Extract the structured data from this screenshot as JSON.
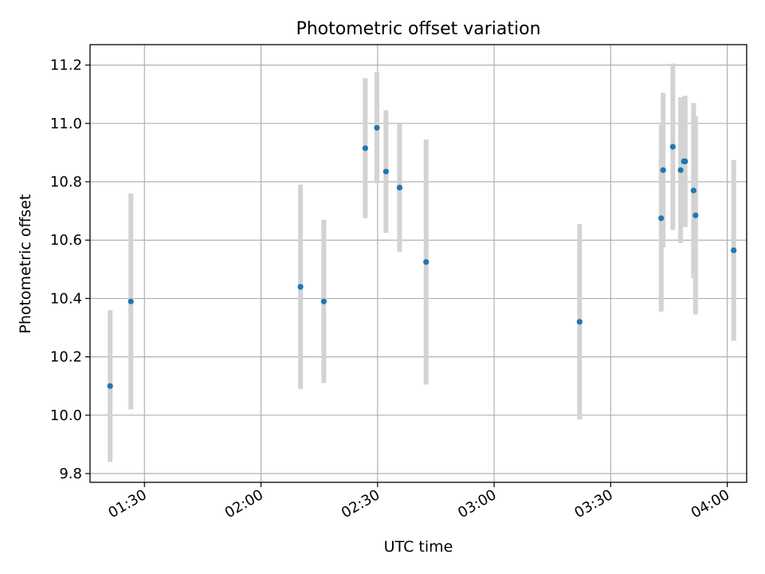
{
  "chart_data": {
    "type": "scatter",
    "title": "Photometric offset variation",
    "xlabel": "UTC time",
    "ylabel": "Photometric offset",
    "x_axis": "time",
    "xlim": [
      "01:16",
      "04:05"
    ],
    "ylim": [
      9.77,
      11.27
    ],
    "x_ticks": [
      "01:30",
      "02:00",
      "02:30",
      "03:00",
      "03:30",
      "04:00"
    ],
    "y_ticks": [
      "9.8",
      "10.0",
      "10.2",
      "10.4",
      "10.6",
      "10.8",
      "11.0",
      "11.2"
    ],
    "grid": true,
    "marker_color": "#1f77b4",
    "errorbar_color": "#d3d3d3",
    "points": [
      {
        "t": "01:21:10",
        "y": 10.1,
        "err": 0.26
      },
      {
        "t": "01:26:30",
        "y": 10.39,
        "err": 0.37
      },
      {
        "t": "02:10:10",
        "y": 10.44,
        "err": 0.35
      },
      {
        "t": "02:16:10",
        "y": 10.39,
        "err": 0.28
      },
      {
        "t": "02:26:50",
        "y": 10.915,
        "err": 0.24
      },
      {
        "t": "02:29:50",
        "y": 10.985,
        "err": 0.19
      },
      {
        "t": "02:32:10",
        "y": 10.835,
        "err": 0.21
      },
      {
        "t": "02:35:40",
        "y": 10.78,
        "err": 0.22
      },
      {
        "t": "02:42:30",
        "y": 10.525,
        "err": 0.42
      },
      {
        "t": "03:22:00",
        "y": 10.32,
        "err": 0.335
      },
      {
        "t": "03:43:00",
        "y": 10.675,
        "err": 0.32
      },
      {
        "t": "03:43:30",
        "y": 10.84,
        "err": 0.265
      },
      {
        "t": "03:46:00",
        "y": 10.92,
        "err": 0.285
      },
      {
        "t": "03:48:00",
        "y": 10.84,
        "err": 0.25
      },
      {
        "t": "03:48:50",
        "y": 10.87,
        "err": 0.22
      },
      {
        "t": "03:49:10",
        "y": 10.87,
        "err": 0.225
      },
      {
        "t": "03:51:20",
        "y": 10.77,
        "err": 0.3
      },
      {
        "t": "03:51:50",
        "y": 10.685,
        "err": 0.34
      },
      {
        "t": "04:01:40",
        "y": 10.565,
        "err": 0.31
      }
    ]
  }
}
